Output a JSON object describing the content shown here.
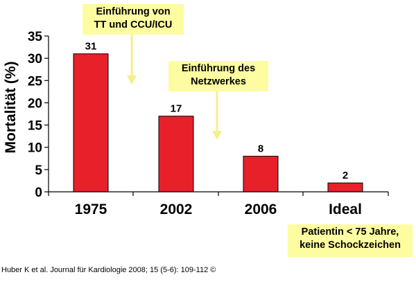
{
  "chart_data": {
    "type": "bar",
    "categories": [
      "1975",
      "2002",
      "2006",
      "Ideal"
    ],
    "values": [
      31,
      17,
      8,
      2
    ],
    "data_labels": [
      "31",
      "17",
      "8",
      "2"
    ],
    "ylabel": "Mortalität (%)",
    "xlabel": "",
    "ylim": [
      0,
      35
    ],
    "yticks": [
      0,
      5,
      10,
      15,
      20,
      25,
      30,
      35
    ],
    "grid": false,
    "bar_color": "#e8202a",
    "arrow_color": "#f4f08a"
  },
  "annotations": {
    "callout1": [
      "Einführung von",
      "TT und CCU/ICU"
    ],
    "callout2": [
      "Einführung des",
      "Netzwerkes"
    ],
    "note": [
      "Patientin < 75 Jahre,",
      "keine Schockzeichen"
    ]
  },
  "source": "Huber K et al. Journal für Kardiologie 2008; 15 (5-6): 109-112 ©"
}
